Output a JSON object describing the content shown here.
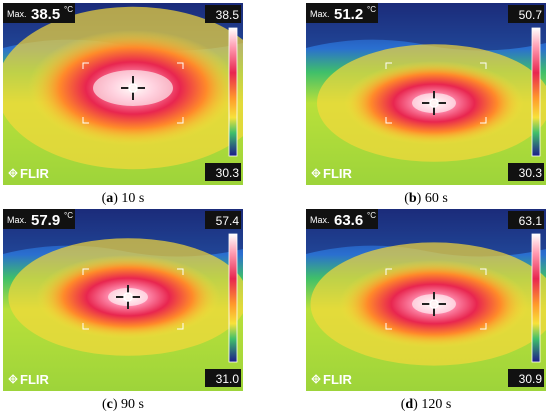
{
  "panels": [
    {
      "max_label": "Max.",
      "max_value": "38.5",
      "unit": "°C",
      "scale_top": "38.5",
      "scale_bottom": "30.3",
      "brand": "FLIR",
      "caption": {
        "prefix": "(",
        "letter": "a",
        "suffix": ") 10 s"
      }
    },
    {
      "max_label": "Max.",
      "max_value": "51.2",
      "unit": "°C",
      "scale_top": "50.7",
      "scale_bottom": "30.3",
      "brand": "FLIR",
      "caption": {
        "prefix": "(",
        "letter": "b",
        "suffix": ") 60 s"
      }
    },
    {
      "max_label": "Max.",
      "max_value": "57.9",
      "unit": "°C",
      "scale_top": "57.4",
      "scale_bottom": "31.0",
      "brand": "FLIR",
      "caption": {
        "prefix": "(",
        "letter": "c",
        "suffix": ") 90 s"
      }
    },
    {
      "max_label": "Max.",
      "max_value": "63.6",
      "unit": "°C",
      "scale_top": "63.1",
      "scale_bottom": "30.9",
      "brand": "FLIR",
      "caption": {
        "prefix": "(",
        "letter": "d",
        "suffix": ") 120 s"
      }
    }
  ]
}
